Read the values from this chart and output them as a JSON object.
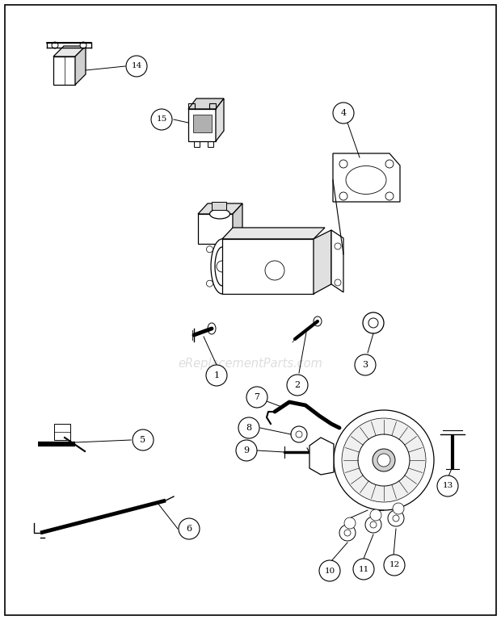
{
  "background_color": "#ffffff",
  "border_color": "#000000",
  "watermark_text": "eReplacementParts.com",
  "watermark_color": "#c8c8c8",
  "watermark_fontsize": 10.5,
  "fig_width": 6.2,
  "fig_height": 7.68,
  "dpi": 100
}
